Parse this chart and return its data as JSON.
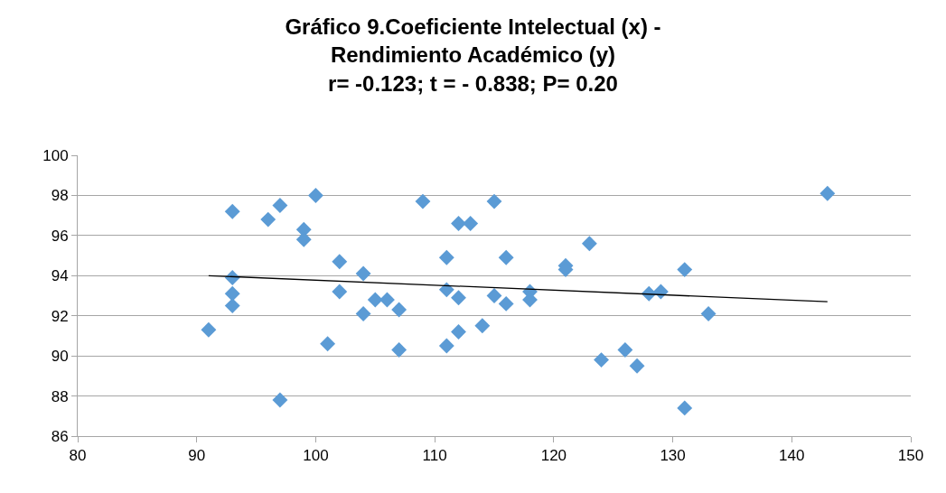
{
  "chart_data": {
    "type": "scatter",
    "title": "Gráfico 9.Coeficiente Intelectual (x) -\nRendimiento Académico (y)\nr= -0.123; t = - 0.838; P= 0.20",
    "xlim": [
      80,
      150
    ],
    "xticks": [
      80,
      90,
      100,
      110,
      120,
      130,
      140,
      150
    ],
    "ylim": [
      86,
      100
    ],
    "yticks": [
      86,
      88,
      90,
      92,
      94,
      96,
      98,
      100
    ],
    "grid": "y",
    "marker": "diamond",
    "series": [
      {
        "color": "#5b9bd5",
        "x": [
          91,
          93,
          93,
          93,
          93,
          96,
          97,
          97,
          99,
          99,
          100,
          101,
          102,
          102,
          104,
          104,
          105,
          106,
          107,
          107,
          109,
          111,
          111,
          111,
          112,
          112,
          112,
          113,
          114,
          115,
          115,
          116,
          116,
          118,
          118,
          121,
          121,
          123,
          124,
          126,
          127,
          128,
          129,
          131,
          131,
          133,
          143
        ],
        "values": [
          91.3,
          97.2,
          93.9,
          93.1,
          92.5,
          96.8,
          97.5,
          87.8,
          96.3,
          95.8,
          98.0,
          90.6,
          94.7,
          93.2,
          94.1,
          92.1,
          92.8,
          92.8,
          92.3,
          90.3,
          97.7,
          94.9,
          93.3,
          90.5,
          96.6,
          92.9,
          91.2,
          96.6,
          91.5,
          97.7,
          93.0,
          94.9,
          92.6,
          93.2,
          92.8,
          94.5,
          94.3,
          95.6,
          89.8,
          90.3,
          89.5,
          93.1,
          93.2,
          94.3,
          87.4,
          92.1,
          98.1
        ]
      },
      {
        "type": "line",
        "color": "#000000",
        "marker": "none",
        "x": [
          91,
          143
        ],
        "values": [
          94.0,
          92.7
        ]
      }
    ]
  }
}
